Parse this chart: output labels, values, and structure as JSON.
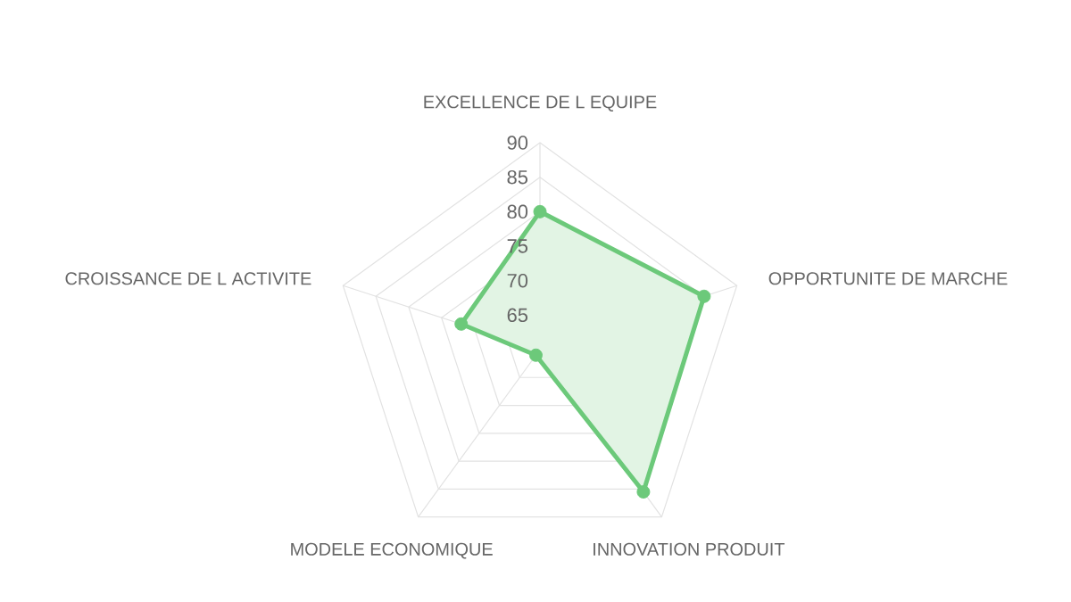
{
  "chart_data": {
    "type": "radar",
    "categories": [
      "EXCELLENCE DE L EQUIPE",
      "OPPORTUNITE DE MARCHE",
      "INNOVATION PRODUIT",
      "MODELE ECONOMIQUE",
      "CROISSANCE DE L ACTIVITE"
    ],
    "series": [
      {
        "color": "#6cc97a",
        "values": [
          80,
          85,
          85.5,
          61,
          72
        ]
      }
    ],
    "ylim": [
      60,
      90
    ],
    "yticks": [
      65,
      70,
      75,
      80,
      85,
      90
    ],
    "grid": true,
    "marker": "circle"
  }
}
